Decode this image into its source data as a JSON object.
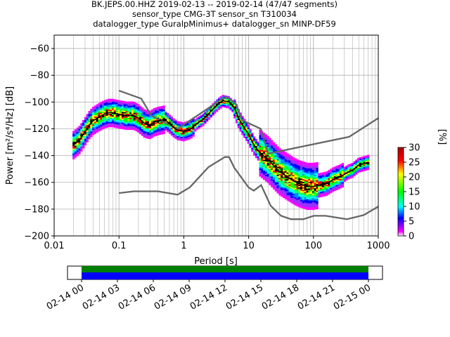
{
  "title_lines": [
    "BK.JEPS.00.HHZ   2019-02-13 -- 2019-02-14  (47/47 segments)",
    "sensor_type CMG-3T sensor_sn T310034",
    "datalogger_type GuralpMinimus+ datalogger_sn MINP-DF59"
  ],
  "chart_data": [
    {
      "type": "heatmap",
      "title": "BK.JEPS.00.HHZ   2019-02-13 -- 2019-02-14  (47/47 segments)",
      "xlabel": "Period [s]",
      "ylabel": "Power [m²/s⁴/Hz] [dB]",
      "xscale": "log",
      "xlim": [
        0.01,
        1000
      ],
      "ylim": [
        -200,
        -50
      ],
      "x_tick_labels": [
        "0.01",
        "0.1",
        "1",
        "10",
        "100",
        "1000"
      ],
      "y_ticks": [
        -200,
        -180,
        -160,
        -140,
        -120,
        -100,
        -80,
        -60
      ],
      "grid": true,
      "colorbar": {
        "label": "[%]",
        "min": 0,
        "max": 30,
        "ticks": [
          0,
          5,
          10,
          15,
          20,
          25,
          30
        ],
        "colors": [
          "#ffffff",
          "#ff00ff",
          "#0000ff",
          "#00ffff",
          "#00ff00",
          "#ffff00",
          "#ff0000",
          "#aa0000"
        ]
      },
      "mean_curve": [
        [
          0.02,
          -132
        ],
        [
          0.025,
          -128
        ],
        [
          0.03,
          -122
        ],
        [
          0.035,
          -117
        ],
        [
          0.04,
          -114
        ],
        [
          0.05,
          -111
        ],
        [
          0.06,
          -109
        ],
        [
          0.07,
          -108
        ],
        [
          0.08,
          -108
        ],
        [
          0.1,
          -109
        ],
        [
          0.13,
          -110
        ],
        [
          0.17,
          -110
        ],
        [
          0.2,
          -112
        ],
        [
          0.25,
          -116
        ],
        [
          0.3,
          -117
        ],
        [
          0.35,
          -115
        ],
        [
          0.4,
          -114
        ],
        [
          0.5,
          -113
        ],
        [
          0.6,
          -116
        ],
        [
          0.7,
          -119
        ],
        [
          0.8,
          -121
        ],
        [
          1,
          -122
        ],
        [
          1.3,
          -120
        ],
        [
          1.6,
          -116
        ],
        [
          2,
          -113
        ],
        [
          2.5,
          -108
        ],
        [
          3,
          -104
        ],
        [
          3.5,
          -101
        ],
        [
          4,
          -99
        ],
        [
          5,
          -100
        ],
        [
          6,
          -104
        ],
        [
          7,
          -112
        ],
        [
          8,
          -117
        ],
        [
          10,
          -124
        ],
        [
          12,
          -132
        ],
        [
          15,
          -138
        ],
        [
          20,
          -143
        ],
        [
          25,
          -148
        ],
        [
          30,
          -152
        ],
        [
          40,
          -156
        ],
        [
          50,
          -159
        ],
        [
          60,
          -161
        ],
        [
          70,
          -162
        ],
        [
          80,
          -163
        ],
        [
          100,
          -163
        ],
        [
          130,
          -162
        ],
        [
          160,
          -161
        ],
        [
          200,
          -158
        ],
        [
          250,
          -156
        ],
        [
          300,
          -154
        ],
        [
          350,
          -152
        ],
        [
          400,
          -151
        ],
        [
          500,
          -147
        ],
        [
          600,
          -146
        ],
        [
          700,
          -145
        ]
      ],
      "nhnm": [
        [
          0.1,
          -91.5
        ],
        [
          0.22,
          -97.4
        ],
        [
          0.32,
          -110.5
        ],
        [
          0.8,
          -120
        ],
        [
          3.8,
          -98
        ],
        [
          4.6,
          -96.5
        ],
        [
          6.3,
          -101
        ],
        [
          7.9,
          -113.5
        ],
        [
          15.4,
          -120
        ],
        [
          20,
          -138.5
        ],
        [
          354.8,
          -126
        ],
        [
          1000,
          -112
        ]
      ],
      "nlnm": [
        [
          0.1,
          -168
        ],
        [
          0.17,
          -166.7
        ],
        [
          0.4,
          -166.7
        ],
        [
          0.8,
          -169.2
        ],
        [
          1.24,
          -163.7
        ],
        [
          2.4,
          -148.6
        ],
        [
          4.3,
          -141.1
        ],
        [
          5,
          -141.1
        ],
        [
          6,
          -149
        ],
        [
          10,
          -163.8
        ],
        [
          12,
          -166.2
        ],
        [
          15.6,
          -162.1
        ],
        [
          21.9,
          -177.5
        ],
        [
          31.6,
          -185
        ],
        [
          45,
          -187.5
        ],
        [
          70,
          -187.5
        ],
        [
          101,
          -185
        ],
        [
          154,
          -185
        ],
        [
          328,
          -187.5
        ],
        [
          600,
          -184.4
        ],
        [
          1000,
          -178
        ]
      ]
    },
    {
      "type": "timeline",
      "x_tick_labels": [
        "02-14 00",
        "02-14 03",
        "02-14 06",
        "02-14 09",
        "02-14 12",
        "02-14 15",
        "02-14 18",
        "02-14 21",
        "02-15 00"
      ],
      "bars": [
        {
          "name": "",
          "color": "#008000"
        },
        {
          "name": "",
          "color": "#0000ff"
        }
      ]
    }
  ]
}
